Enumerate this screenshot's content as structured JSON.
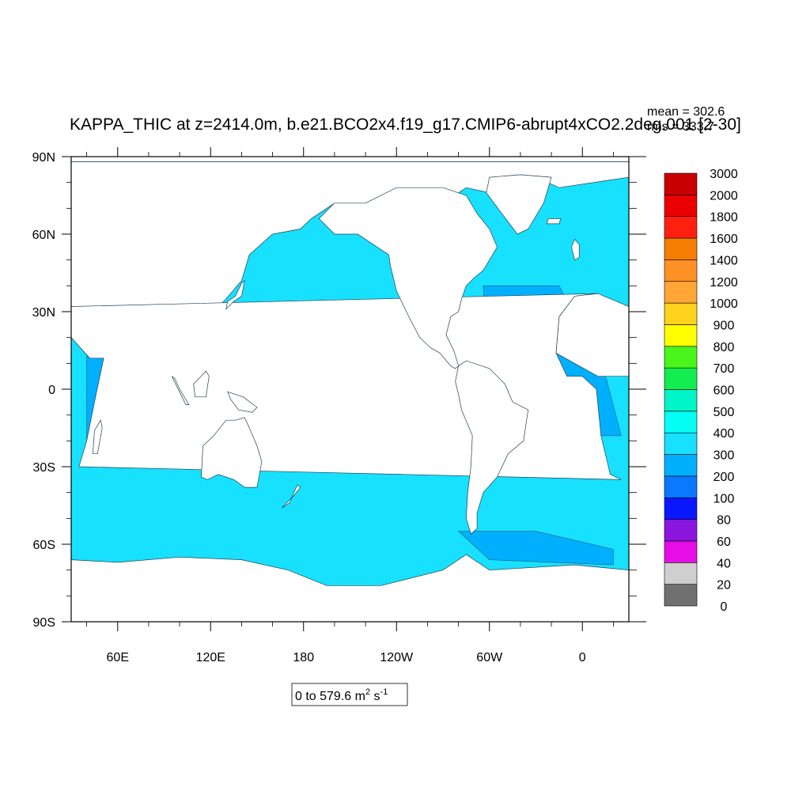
{
  "chart_data": {
    "type": "heatmap",
    "title": "KAPPA_THIC at z=2414.0m, b.e21.BCO2x4.f19_g17.CMIP6-abrupt4xCO2.2deg.001 [2-30]",
    "stats": {
      "mean": "mean = 302.6",
      "rms": "rms = 333.7"
    },
    "range_label": {
      "text": "0 to 579.6 m",
      "unit_sup1": "2",
      "mid": " s",
      "unit_sup2": "-1"
    },
    "x_axis": {
      "ticks": [
        "60E",
        "120E",
        "180",
        "120W",
        "60W",
        "0"
      ],
      "range_deg_east": [
        30,
        390
      ]
    },
    "y_axis": {
      "ticks": [
        "90N",
        "60N",
        "30N",
        "0",
        "30S",
        "60S",
        "90S"
      ],
      "range_deg": [
        -90,
        90
      ]
    },
    "colorbar": {
      "levels": [
        "0",
        "20",
        "40",
        "60",
        "80",
        "100",
        "200",
        "300",
        "400",
        "500",
        "600",
        "700",
        "800",
        "900",
        "1000",
        "1200",
        "1400",
        "1600",
        "1800",
        "2000",
        "3000"
      ],
      "colors": [
        "#707070",
        "#cfcfcf",
        "#e60ee6",
        "#8b16e0",
        "#0a18ff",
        "#0a78ff",
        "#00b0ff",
        "#18e0ff",
        "#05fff5",
        "#00f5c8",
        "#12ee50",
        "#49f51b",
        "#ffff00",
        "#ffd21e",
        "#ffa637",
        "#ff9127",
        "#f57e00",
        "#ff2010",
        "#ea0000",
        "#c80000"
      ]
    },
    "field": {
      "land_color": "#ffffff",
      "ocean_color": "#18e0ff",
      "band_color": "#00b0ff",
      "dark_color": "#0a78ff",
      "bands_note": "mostly 300-400 ocean, tropical bands 200-300"
    }
  }
}
